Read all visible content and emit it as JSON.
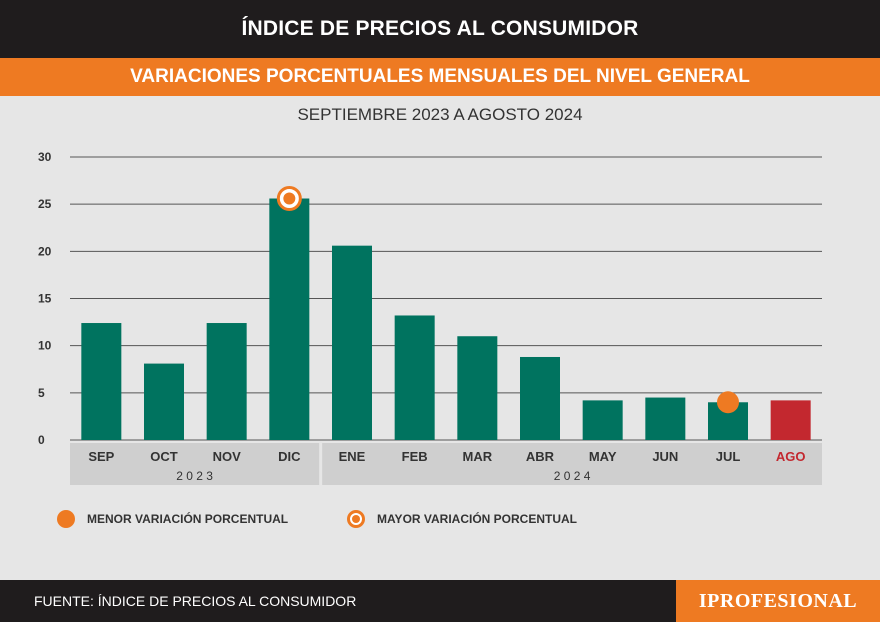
{
  "header": {
    "title": "ÍNDICE DE PRECIOS AL CONSUMIDOR",
    "subtitle": "VARIACIONES PORCENTUALES MENSUALES DEL NIVEL GENERAL",
    "period": "SEPTIEMBRE 2023 A AGOSTO 2024"
  },
  "colors": {
    "bar": "#00735f",
    "highlight_bar": "#c3282f",
    "accent": "#ee7a22",
    "dark": "#1f1c1d"
  },
  "chart_data": {
    "type": "bar",
    "categories": [
      "SEP",
      "OCT",
      "NOV",
      "DIC",
      "ENE",
      "FEB",
      "MAR",
      "ABR",
      "MAY",
      "JUN",
      "JUL",
      "AGO"
    ],
    "values": [
      12.4,
      8.1,
      12.4,
      25.6,
      20.6,
      13.2,
      11.0,
      8.8,
      4.2,
      4.5,
      4.0,
      4.2
    ],
    "highlighted_category": "AGO",
    "ylim": [
      0,
      30
    ],
    "yticks": [
      0,
      5,
      10,
      15,
      20,
      25,
      30
    ],
    "grid": true,
    "year_groups": [
      {
        "label": "2 0 2 3",
        "categories": [
          "SEP",
          "OCT",
          "NOV",
          "DIC"
        ]
      },
      {
        "label": "2 0 2 4",
        "categories": [
          "ENE",
          "FEB",
          "MAR",
          "ABR",
          "MAY",
          "JUN",
          "JUL",
          "AGO"
        ]
      }
    ],
    "markers": {
      "max": {
        "category": "DIC",
        "style": "ring"
      },
      "min": {
        "category": "JUL",
        "style": "filled"
      }
    }
  },
  "legend": {
    "min_label": "MENOR VARIACIÓN PORCENTUAL",
    "max_label": "MAYOR VARIACIÓN PORCENTUAL"
  },
  "footer": {
    "source": "FUENTE: ÍNDICE DE PRECIOS AL CONSUMIDOR",
    "logo": "IPROFESIONAL"
  }
}
